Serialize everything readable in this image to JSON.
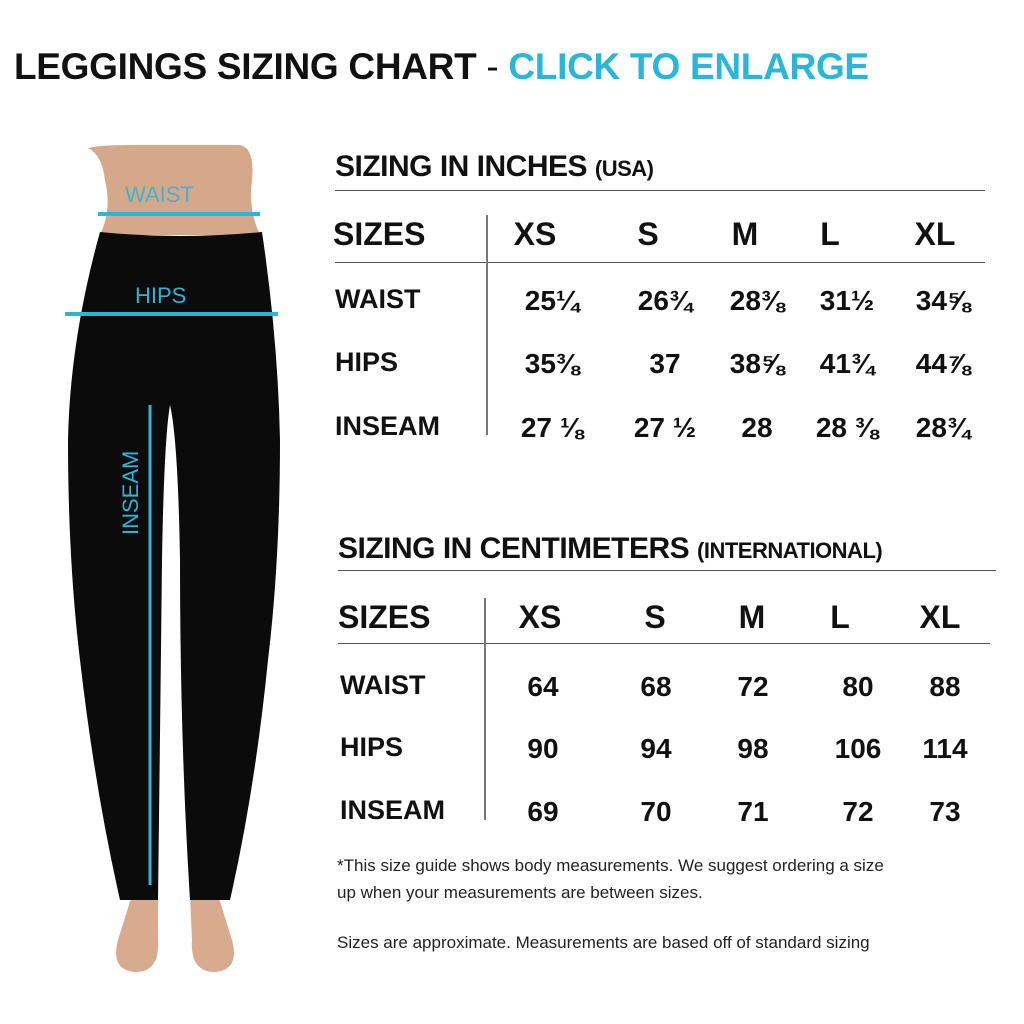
{
  "header": {
    "title": "LEGGINGS SIZING CHART",
    "separator": "-",
    "cta": "CLICK TO ENLARGE"
  },
  "colors": {
    "accent": "#29b6d8",
    "text": "#111111"
  },
  "figure": {
    "labels": {
      "waist": "WAIST",
      "hips": "HIPS",
      "inseam": "INSEAM"
    }
  },
  "inches": {
    "title": "SIZING IN INCHES",
    "subtitle": "(USA)",
    "sizes_label": "SIZES",
    "sizes": [
      "XS",
      "S",
      "M",
      "L",
      "XL"
    ],
    "rows": [
      {
        "label": "WAIST",
        "values": [
          "25¼",
          "26¾",
          "28⅜",
          "31½",
          "34⅝"
        ]
      },
      {
        "label": "HIPS",
        "values": [
          "35⅜",
          "37",
          "38⅝",
          "41¾",
          "44⅞"
        ]
      },
      {
        "label": "INSEAM",
        "values": [
          "27 ⅛",
          "27 ½",
          "28",
          "28 ⅜",
          "28¾"
        ]
      }
    ]
  },
  "cm": {
    "title": "SIZING IN CENTIMETERS",
    "subtitle": "(INTERNATIONAL)",
    "sizes_label": "SIZES",
    "sizes": [
      "XS",
      "S",
      "M",
      "L",
      "XL"
    ],
    "rows": [
      {
        "label": "WAIST",
        "values": [
          "64",
          "68",
          "72",
          "80",
          "88"
        ]
      },
      {
        "label": "HIPS",
        "values": [
          "90",
          "94",
          "98",
          "106",
          "114"
        ]
      },
      {
        "label": "INSEAM",
        "values": [
          "69",
          "70",
          "71",
          "72",
          "73"
        ]
      }
    ]
  },
  "notes": {
    "line1": "*This size guide shows body measurements. We suggest ordering a size",
    "line2": "up when your measurements are between sizes.",
    "line3": "Sizes are approximate. Measurements are based off of standard sizing"
  }
}
